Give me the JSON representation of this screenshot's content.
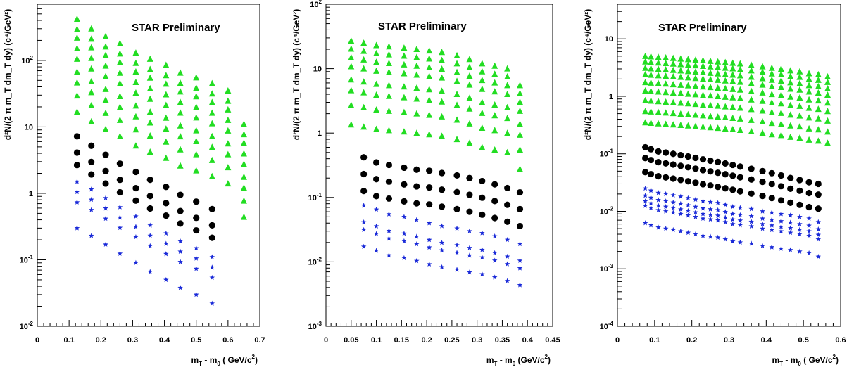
{
  "chart_data": [
    {
      "type": "scatter",
      "title": "STAR Preliminary",
      "xlabel_main": "m",
      "xlabel_sub1": "T",
      "xlabel_mid": " - m",
      "xlabel_sub2": "0",
      "xlabel_unit": "  ( GeV/c",
      "xlabel_sup": "2",
      "xlabel_end": ")",
      "ylabel": "d²N/(2 π m_T dm_T dy)  (c⁴/GeV²)",
      "xlim": [
        0,
        0.7
      ],
      "ylim": [
        0.01,
        700
      ],
      "yscale": "log",
      "xticks": [
        0,
        0.1,
        0.2,
        0.3,
        0.4,
        0.5,
        0.6,
        0.7
      ],
      "xtick_labels": [
        "0",
        "0.1",
        "0.2",
        "0.3",
        "0.4",
        "0.5",
        "0.6",
        "0.7"
      ],
      "ytick_labels": [
        {
          "value": 0.01,
          "base": "10",
          "exp": "-2"
        },
        {
          "value": 0.1,
          "base": "10",
          "exp": "-1"
        },
        {
          "value": 1,
          "base": "1",
          "exp": ""
        },
        {
          "value": 10,
          "base": "10",
          "exp": ""
        },
        {
          "value": 100,
          "base": "10",
          "exp": "2"
        }
      ],
      "series": [
        {
          "marker": "triangle",
          "color": "#22dd22",
          "x": [
            0.125,
            0.17,
            0.215,
            0.26,
            0.31,
            0.355,
            0.405,
            0.45,
            0.5,
            0.55,
            0.6,
            0.65
          ],
          "top": [
            420,
            300,
            230,
            180,
            130,
            105,
            85,
            65,
            55,
            45,
            35,
            11
          ],
          "factors": [
            1,
            0.7,
            0.52,
            0.36,
            0.25,
            0.16,
            0.11,
            0.07,
            0.04
          ]
        },
        {
          "marker": "circle",
          "color": "#000000",
          "x": [
            0.125,
            0.17,
            0.215,
            0.26,
            0.31,
            0.355,
            0.405,
            0.45,
            0.5,
            0.55
          ],
          "top": [
            7.2,
            5.2,
            3.8,
            2.8,
            2.1,
            1.6,
            1.25,
            0.95,
            0.75,
            0.58
          ],
          "factors": [
            1,
            0.57,
            0.37
          ]
        },
        {
          "marker": "star",
          "color": "#1a2ad8",
          "x": [
            0.125,
            0.17,
            0.215,
            0.26,
            0.31,
            0.355,
            0.405,
            0.45,
            0.5,
            0.55
          ],
          "top": [
            1.5,
            1.15,
            0.85,
            0.62,
            0.45,
            0.33,
            0.25,
            0.19,
            0.15,
            0.11
          ],
          "factors": [
            1,
            0.7,
            0.49,
            0.2
          ]
        }
      ]
    },
    {
      "type": "scatter",
      "title": "STAR Preliminary",
      "xlabel_main": "m",
      "xlabel_sub1": "T",
      "xlabel_mid": " - m",
      "xlabel_sub2": "0",
      "xlabel_unit": "  (GeV/c",
      "xlabel_sup": "2",
      "xlabel_end": ")",
      "ylabel": "d²N/(2 π m_T dm_T dy)  (c⁴/GeV²)",
      "xlim": [
        0,
        0.45
      ],
      "ylim": [
        0.001,
        100
      ],
      "yscale": "log",
      "xticks": [
        0,
        0.05,
        0.1,
        0.15,
        0.2,
        0.25,
        0.3,
        0.35,
        0.4,
        0.45
      ],
      "xtick_labels": [
        "0",
        "0.05",
        "0.1",
        "0.15",
        "0.2",
        "0.25",
        "0.3",
        "0.35",
        "0.4",
        "0.45"
      ],
      "ytick_labels": [
        {
          "value": 0.001,
          "base": "10",
          "exp": "-3"
        },
        {
          "value": 0.01,
          "base": "10",
          "exp": "-2"
        },
        {
          "value": 0.1,
          "base": "10",
          "exp": "-1"
        },
        {
          "value": 1,
          "base": "1",
          "exp": ""
        },
        {
          "value": 10,
          "base": "10",
          "exp": ""
        },
        {
          "value": 100,
          "base": "10",
          "exp": "2"
        }
      ],
      "series": [
        {
          "marker": "triangle",
          "color": "#22dd22",
          "x": [
            0.05,
            0.075,
            0.1,
            0.125,
            0.155,
            0.18,
            0.205,
            0.23,
            0.26,
            0.285,
            0.31,
            0.335,
            0.36,
            0.385
          ],
          "top": [
            27,
            25,
            23,
            22,
            21,
            20,
            19,
            18,
            16,
            14,
            12,
            11,
            10,
            5.5
          ],
          "factors": [
            1,
            0.75,
            0.55,
            0.4,
            0.25,
            0.17,
            0.1,
            0.05
          ]
        },
        {
          "marker": "circle",
          "color": "#000000",
          "x": [
            0.075,
            0.1,
            0.125,
            0.155,
            0.18,
            0.205,
            0.23,
            0.26,
            0.285,
            0.31,
            0.335,
            0.36,
            0.385
          ],
          "top": [
            0.42,
            0.35,
            0.32,
            0.29,
            0.27,
            0.26,
            0.24,
            0.22,
            0.2,
            0.18,
            0.16,
            0.14,
            0.12
          ],
          "factors": [
            1,
            0.55,
            0.3
          ]
        },
        {
          "marker": "star",
          "color": "#1a2ad8",
          "x": [
            0.075,
            0.1,
            0.125,
            0.155,
            0.18,
            0.205,
            0.23,
            0.26,
            0.285,
            0.31,
            0.335,
            0.36,
            0.385
          ],
          "top": [
            0.075,
            0.065,
            0.055,
            0.05,
            0.045,
            0.04,
            0.036,
            0.033,
            0.03,
            0.028,
            0.025,
            0.022,
            0.019
          ],
          "factors": [
            1,
            0.55,
            0.42,
            0.23
          ]
        }
      ]
    },
    {
      "type": "scatter",
      "title": "STAR Preliminary",
      "xlabel_main": "m",
      "xlabel_sub1": "T",
      "xlabel_mid": " - m",
      "xlabel_sub2": "0",
      "xlabel_unit": "  ( GeV/c",
      "xlabel_sup": "2",
      "xlabel_end": ")",
      "ylabel": "d²N/(2 π m_T dm_T dy)  (c⁴/GeV²)",
      "xlim": [
        0,
        0.6
      ],
      "ylim": [
        0.0001,
        40
      ],
      "yscale": "log",
      "xticks": [
        0,
        0.1,
        0.2,
        0.3,
        0.4,
        0.5,
        0.6
      ],
      "xtick_labels": [
        "0",
        "0.1",
        "0.2",
        "0.3",
        "0.4",
        "0.5",
        "0.6"
      ],
      "ytick_labels": [
        {
          "value": 0.0001,
          "base": "10",
          "exp": "-4"
        },
        {
          "value": 0.001,
          "base": "10",
          "exp": "-3"
        },
        {
          "value": 0.01,
          "base": "10",
          "exp": "-2"
        },
        {
          "value": 0.1,
          "base": "10",
          "exp": "-1"
        },
        {
          "value": 1,
          "base": "1",
          "exp": ""
        },
        {
          "value": 10,
          "base": "10",
          "exp": ""
        }
      ],
      "series": [
        {
          "marker": "triangle",
          "color": "#22dd22",
          "x": [
            0.075,
            0.09,
            0.11,
            0.13,
            0.15,
            0.17,
            0.19,
            0.21,
            0.23,
            0.25,
            0.27,
            0.29,
            0.31,
            0.33,
            0.36,
            0.39,
            0.415,
            0.44,
            0.465,
            0.49,
            0.515,
            0.54,
            0.565
          ],
          "top": [
            5,
            4.9,
            4.8,
            4.7,
            4.6,
            4.5,
            4.4,
            4.3,
            4.2,
            4.1,
            4,
            3.9,
            3.8,
            3.7,
            3.5,
            3.3,
            3.1,
            3,
            2.8,
            2.7,
            2.5,
            2.4,
            2.2
          ],
          "factors": [
            1,
            0.8,
            0.62,
            0.48,
            0.35,
            0.25,
            0.17,
            0.11,
            0.07
          ]
        },
        {
          "marker": "circle",
          "color": "#000000",
          "x": [
            0.075,
            0.09,
            0.11,
            0.13,
            0.15,
            0.17,
            0.19,
            0.21,
            0.23,
            0.25,
            0.27,
            0.29,
            0.31,
            0.33,
            0.36,
            0.39,
            0.415,
            0.44,
            0.465,
            0.49,
            0.515,
            0.54
          ],
          "top": [
            0.13,
            0.12,
            0.11,
            0.105,
            0.1,
            0.095,
            0.09,
            0.085,
            0.08,
            0.076,
            0.072,
            0.068,
            0.064,
            0.06,
            0.055,
            0.05,
            0.046,
            0.042,
            0.038,
            0.035,
            0.032,
            0.03
          ],
          "factors": [
            1,
            0.65,
            0.37
          ]
        },
        {
          "marker": "star",
          "color": "#1a2ad8",
          "x": [
            0.075,
            0.09,
            0.11,
            0.13,
            0.15,
            0.17,
            0.19,
            0.21,
            0.23,
            0.25,
            0.27,
            0.29,
            0.31,
            0.33,
            0.36,
            0.39,
            0.415,
            0.44,
            0.465,
            0.49,
            0.515,
            0.54
          ],
          "top": [
            0.025,
            0.023,
            0.021,
            0.02,
            0.019,
            0.018,
            0.017,
            0.016,
            0.015,
            0.0145,
            0.014,
            0.013,
            0.012,
            0.0115,
            0.011,
            0.01,
            0.0095,
            0.009,
            0.0085,
            0.008,
            0.0075,
            0.0065
          ],
          "factors": [
            1,
            0.75,
            0.6,
            0.5,
            0.25
          ]
        }
      ]
    }
  ]
}
